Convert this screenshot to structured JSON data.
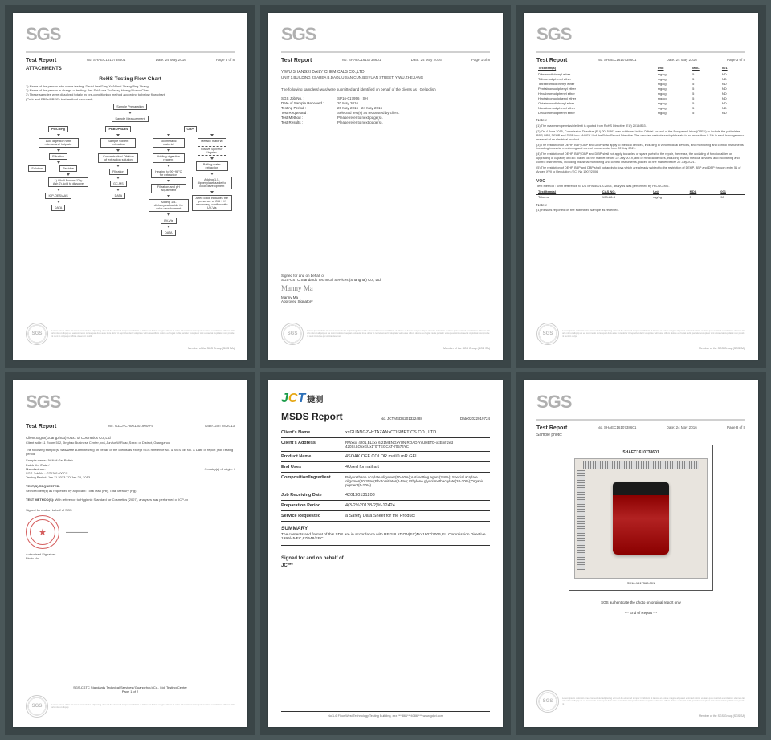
{
  "bg_color": "#4a5759",
  "logo_text": "SGS",
  "logo_color": "#b0b0b0",
  "docs": [
    {
      "type": "sgs-flow",
      "report_label": "Test Report",
      "report_no": "No. SHAEC1610738601",
      "date": "Date: 24 May 2016",
      "page": "Page 6 of 8",
      "attach": "ATTACHMENTS",
      "flow_title": "RoHS Testing Flow Chart",
      "intro_lines": [
        "1) Name of the person who made testing: David Lee/Gary Xu/Winni Zhang/Jing Zhang",
        "2) Name of the person in charge of testing: Jan Shi/Luna Xu/Jessy Huang/Xiomo Chen",
        "3) These samples were dissolved totally by pre-conditioning method according to below flow chart",
        "   (Cr6+ and PBBs/PBDEs test method excluded)"
      ],
      "flow_nodes": {
        "top": [
          "Sample Preparation",
          "Sample Measurement"
        ],
        "col_headers": [
          "Pb/Cd/Hg",
          "PBBs/PBDEs",
          "Cr6+"
        ],
        "c1": [
          "Acid digestion with microwave/ hotplate",
          "Filtration",
          "Solution",
          "Residue",
          "1) Alkali Fusion / Dry Ash 2) Acid to dissolve",
          "Filtration",
          "ICP-OES/AAS",
          "DATA"
        ],
        "c2": [
          "Sample solvent extraction",
          "Concentration/ Dilution of extraction solution",
          "Filtration",
          "GC-MS",
          "DATA"
        ],
        "c3": [
          "Nonmetallic material",
          "Adding digestion reagent",
          "Heating to 90~95°C for extraction",
          "Filtration and pH adjustment",
          "Adding 1,5-diphenylcarbazide for color development",
          "UV-Vis",
          "DATA"
        ],
        "c4": [
          "Metallic material",
          "Boiling water extraction",
          "Adding 1,5-diphenylcarbazide for color development",
          "A red color indicates the presence of Cr6+. If necessary, confirm with UV-Vis"
        ],
        "spot": "Positive/ Spot test / Negative"
      },
      "footer_member": "Member of the SGS Group (SGS SA)"
    },
    {
      "type": "sgs-cover",
      "report_label": "Test Report",
      "report_no": "No. SHAEC1610738601",
      "date": "Date: 24 May 2016",
      "page": "Page 1 of 8",
      "client": "YIWU SHANGXI DAILY CHEMICALS CO.,LTD",
      "address": "UNIT 1,BUILDING 23,AREA B,DAOLIU SAN CUN,BEIYUAN STREET, YIWU,ZHEJIANG",
      "intro": "The following sample(s) was/were submitted and identified on behalf of the clients as : Gel polish",
      "kv": [
        {
          "k": "SGS Job No. :",
          "v": "SP16-017956 - SH"
        },
        {
          "k": "Date of Sample Received :",
          "v": "20 May 2016"
        },
        {
          "k": "Testing Period :",
          "v": "20 May 2016 - 24 May 2016"
        },
        {
          "k": "Test Requested :",
          "v": "Selected test(s) as requested by client."
        },
        {
          "k": "Test Method :",
          "v": "Please refer to next page(s)."
        },
        {
          "k": "Test Results :",
          "v": "Please refer to next page(s)."
        }
      ],
      "sig_for": "Signed for and on behalf of",
      "sig_org": "SGS-CSTC Standards Technical Services (Shanghai) Co., Ltd.",
      "sig_name": "Manny Ma",
      "sig_printed": "Manny Ma",
      "sig_role": "Approved Signatory",
      "footer_member": "Member of the SGS Group (SGS SA)"
    },
    {
      "type": "sgs-results",
      "report_label": "Test Report",
      "report_no": "No. SHAEC1610738601",
      "date": "Date: 24 May 2016",
      "page": "Page 3 of 8",
      "table1": {
        "cols": [
          "Test Item(s)",
          "Unit",
          "MDL",
          "001"
        ],
        "rows": [
          [
            "Dibromodiphenyl ether",
            "mg/kg",
            "5",
            "ND"
          ],
          [
            "Tribromodiphenyl ether",
            "mg/kg",
            "5",
            "ND"
          ],
          [
            "Tetrabromodiphenyl ether",
            "mg/kg",
            "5",
            "ND"
          ],
          [
            "Pentabromodiphenyl ether",
            "mg/kg",
            "5",
            "ND"
          ],
          [
            "Hexabromodiphenyl ether",
            "mg/kg",
            "5",
            "ND"
          ],
          [
            "Heptabromodiphenyl ether",
            "mg/kg",
            "5",
            "ND"
          ],
          [
            "Octabromodiphenyl ether",
            "mg/kg",
            "5",
            "ND"
          ],
          [
            "Nonabromodiphenyl ether",
            "mg/kg",
            "5",
            "ND"
          ],
          [
            "Decabromodiphenyl ether",
            "mg/kg",
            "5",
            "ND"
          ]
        ]
      },
      "notes_label": "Notes:",
      "notes": [
        "(1) The maximum permissible limit is quoted from RoHS Directive (EU) 2015/863.",
        "(2) On 4 June 2015, Commission Directive (EU) 2015/863 was published in the Official Journal of the European Union (OJEU) to include the phthalates BBP, DBP, DEHP and DIBP into ANNEX II of the Rohs Recast Directive. The new law restricts each phthalate to no more than 0.1% in each homogeneous material of an electrical product.",
        "(3) The restriction of DEHP, BBP, DBP and DIBP shall apply to medical devices, including in vitro medical devices, and monitoring and control instruments, including industrial monitoring and control instruments, from 22 July 2021.",
        "(4) The restriction of DEHP, BBP, DBP and DIBP shall not apply to cables or spare parts for the repair, the reuse, the updating of functionalities or upgrading of capacity of EEE placed on the market before 22 July 2019, and of medical devices, including in vitro medical devices, and monitoring and control instruments, including industrial monitoring and control instruments, placed on the market before 22 July 2021.",
        "(5) The restriction of DEHP, BBP and DBP shall not apply to toys which are already subject to the restriction of DEHP, BBP and DBP through entry 51 of Annex XVII to Regulation (EC) No 1907/2006."
      ],
      "voc_label": "VOC",
      "voc_method": "Test Method :    With reference to US EPA 5021A:2003, analysis was performed by HS-GC-MS.",
      "table2": {
        "cols": [
          "Test Item(s)",
          "CAS NO.",
          "Unit",
          "MDL",
          "001"
        ],
        "rows": [
          [
            "Toluene",
            "108-88-3",
            "mg/kg",
            "5",
            "98"
          ]
        ]
      },
      "note2": "(1) Results reported on the submitted sample as received.",
      "footer_member": "Member of the SGS Group (SGS SA)"
    },
    {
      "type": "sgs-gz",
      "report_label": "Test Report",
      "report_no": "No. GZCPCH0613019009-5",
      "date": "Date: Jan 28 2013",
      "client": "Client:xxgxx(Guangzhou)Youxx of Cosmetics Co.,Ltd",
      "client_addr": "Client addr:11 Room 512, Jinghao Business Center, xx1,JunJunW Road,Sxxxx of District, Guangzhou",
      "intro": "The following sample(s) was/were submitted/reg on behalf of the clients as except SGS reference No. & SGS job No. & Date of report ) for Testing period:",
      "kv": [
        {
          "k": "Sample name:UV Nail Gel Polish",
          "v": ""
        },
        {
          "k": "Batch No./Date:/",
          "v": ""
        },
        {
          "k": "Manufacturer: /",
          "v": "Country(s) of origin: /"
        },
        {
          "k": "SGS Job No.: GZ1301400CC",
          "v": ""
        },
        {
          "k": "Testing Period: Jan 11 2013 TO Jan 28, 2013",
          "v": ""
        }
      ],
      "tests_req_label": "TEST(S) REQUESTED:",
      "tests_req": "Selected test(s) as requested by applicant: Total lead (Pb), Total Mercury (Hg)",
      "method_label": "TEST METHOD(S):",
      "method": "With reference to Hygienic Standard for Cosmetics (2007), analyses was performed of ICP-xx",
      "sig_for": "Signed for and on behalf of SGS",
      "sig_printed": "Authorized Signature",
      "sig_name2": "Binlin Hu",
      "footer_org": "SGS-CSTC Standards Technical Services (Guangzhou) Co., Ltd. Testing Center",
      "footer_page": "Page 1 of 2"
    },
    {
      "type": "msds",
      "logo": "JCT",
      "logo_cn": "捷测",
      "title": "MSDS Report",
      "report_no": "No. JCTMSDS201322488",
      "date": "Date02022019724",
      "rows": [
        {
          "k": "Client's Name",
          "v": "xxGUANGZHxTAZANxCOSMETICS CO., LTD"
        },
        {
          "k": "Client's Address",
          "v": "RWxxxl 4201,BLxxx 6,21MENGxYUN ROAD,YxUHETD-xxEmf zed 420SI.LOxxGUx1°0°TEGCAT-70574YC"
        },
        {
          "k": "Product Name",
          "v": "4SOAK OFF COLOR mail® mR GEL"
        },
        {
          "k": "End Uses",
          "v": "4Used for nail art"
        },
        {
          "k": "Composition/Ingredient",
          "v": "Polyurethane acrylate oligomer(50-60%);Anti-setting agent(3-8%); Special acrylate oligomer(20-30%);Photoinitiator(2-5%); Ethylene glycol methacrylate(20-30%);Organic pigment(5-20%)."
        },
        {
          "k": "Job Receiving Date",
          "v": "420120131208"
        },
        {
          "k": "Preparation Period",
          "v": "4(3-2%20138-2)%-12424"
        },
        {
          "k": "Service Requested",
          "v": "a Safety Data Sheet for the Product"
        }
      ],
      "summary_label": "SUMMARY",
      "summary": "The contents and format of this SDS are in accordance with REGULATION(EC)No.1907/2006,EU Commission Directive 1999/45/EC,67/548/EEC",
      "sig_for": "Signed for and on behalf of",
      "sig_org": "JC***",
      "footer": "No.1-6 Floor,West Technology Testing Building, xxx *** 861***4086 *** www.gdjct.com"
    },
    {
      "type": "sgs-photo",
      "report_label": "Test Report",
      "report_no": "No. SHAEC1610738601",
      "date": "Date: 24 May 2016",
      "page": "Page 8 of 8",
      "sample_label": "Sample photo:",
      "photo_id": "SHAEC1610738601",
      "photo_ref": "SX16-1617368.001",
      "auth_line": "SGS authenticate the photo on original report only",
      "end": "*** End of Report ***",
      "footer_member": "Member of the SGS Group (SGS SA)",
      "product_color_top": "#1a1a1a",
      "product_color_body": "#8b0000"
    }
  ]
}
